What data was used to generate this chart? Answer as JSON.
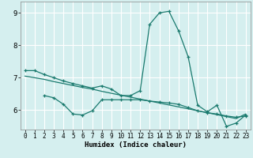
{
  "xlabel": "Humidex (Indice chaleur)",
  "bg_color": "#d5efef",
  "grid_color": "#ffffff",
  "line_color": "#1a7a6e",
  "xlim": [
    -0.5,
    23.5
  ],
  "ylim": [
    5.4,
    9.35
  ],
  "yticks": [
    6,
    7,
    8,
    9
  ],
  "xticks": [
    0,
    1,
    2,
    3,
    4,
    5,
    6,
    7,
    8,
    9,
    10,
    11,
    12,
    13,
    14,
    15,
    16,
    17,
    18,
    19,
    20,
    21,
    22,
    23
  ],
  "line1_x": [
    0,
    1,
    2,
    3,
    4,
    5,
    6,
    7,
    8,
    9,
    10,
    11,
    12,
    13,
    14,
    15,
    16,
    17,
    18,
    19,
    20,
    21,
    22,
    23
  ],
  "line1_y": [
    7.22,
    7.22,
    7.1,
    7.0,
    6.9,
    6.82,
    6.75,
    6.68,
    6.75,
    6.65,
    6.45,
    6.45,
    6.6,
    8.65,
    9.0,
    9.05,
    8.45,
    7.65,
    6.15,
    5.95,
    6.15,
    5.5,
    5.6,
    5.85
  ],
  "line2_x": [
    2,
    3,
    4,
    5,
    6,
    7,
    8,
    9,
    10,
    11,
    12,
    13,
    14,
    15,
    16,
    17,
    18,
    19,
    20,
    21,
    22,
    23
  ],
  "line2_y": [
    6.45,
    6.38,
    6.18,
    5.88,
    5.85,
    5.98,
    6.32,
    6.32,
    6.32,
    6.32,
    6.32,
    6.28,
    6.25,
    6.22,
    6.18,
    6.08,
    5.98,
    5.92,
    5.88,
    5.82,
    5.78,
    5.82
  ],
  "line3_x": [
    0,
    1,
    2,
    3,
    4,
    5,
    6,
    7,
    8,
    9,
    10,
    11,
    12,
    13,
    14,
    15,
    16,
    17,
    18,
    19,
    20,
    21,
    22,
    23
  ],
  "line3_y": [
    7.05,
    7.0,
    6.95,
    6.88,
    6.82,
    6.76,
    6.7,
    6.65,
    6.58,
    6.52,
    6.46,
    6.4,
    6.34,
    6.28,
    6.22,
    6.16,
    6.1,
    6.04,
    5.98,
    5.92,
    5.86,
    5.8,
    5.74,
    5.88
  ]
}
